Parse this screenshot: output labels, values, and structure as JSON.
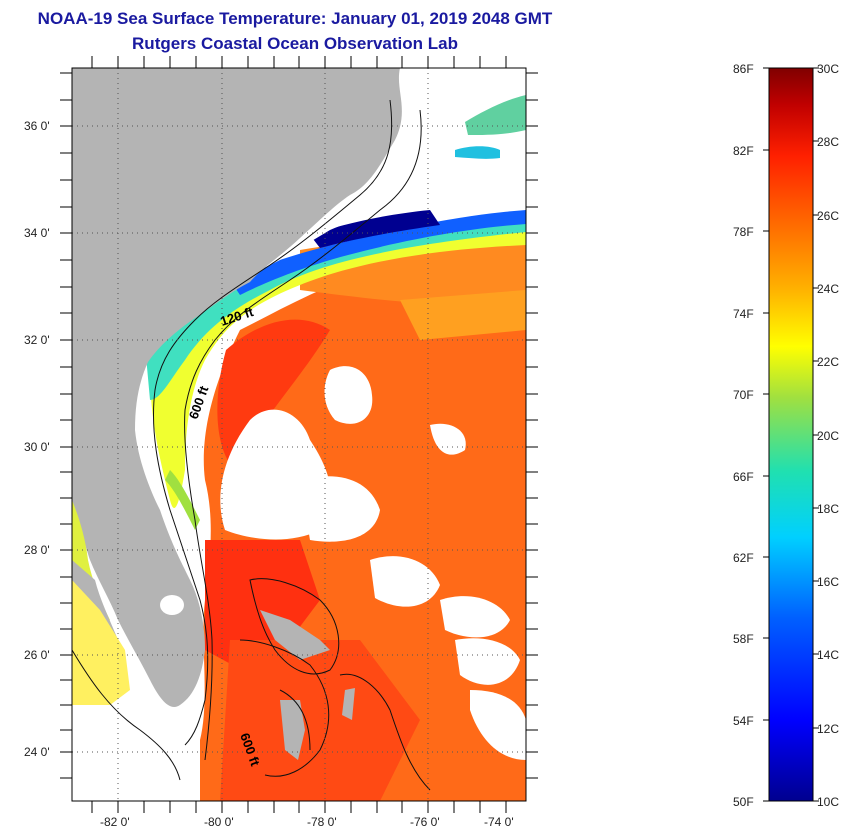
{
  "title": {
    "line1": "NOAA-19 Sea Surface Temperature:  January 01, 2019 2048 GMT",
    "line2": "Rutgers Coastal Ocean Observation Lab"
  },
  "map": {
    "lat_labels": [
      "36 0'",
      "34 0'",
      "32 0'",
      "30 0'",
      "28 0'",
      "26 0'",
      "24 0'"
    ],
    "lon_labels": [
      "-82 0'",
      "-80 0'",
      "-78 0'",
      "-76 0'",
      "-74 0'"
    ],
    "contour_labels": [
      "120 ft",
      "600 ft",
      "600 ft"
    ],
    "colors": {
      "land": "#b4b4b4",
      "cloud": "#ffffff"
    }
  },
  "colorbar": {
    "f_labels": [
      "86F",
      "82F",
      "78F",
      "74F",
      "70F",
      "66F",
      "62F",
      "58F",
      "54F",
      "50F"
    ],
    "c_labels": [
      "30C",
      "28C",
      "26C",
      "24C",
      "22C",
      "20C",
      "18C",
      "16C",
      "14C",
      "12C",
      "10C"
    ]
  }
}
